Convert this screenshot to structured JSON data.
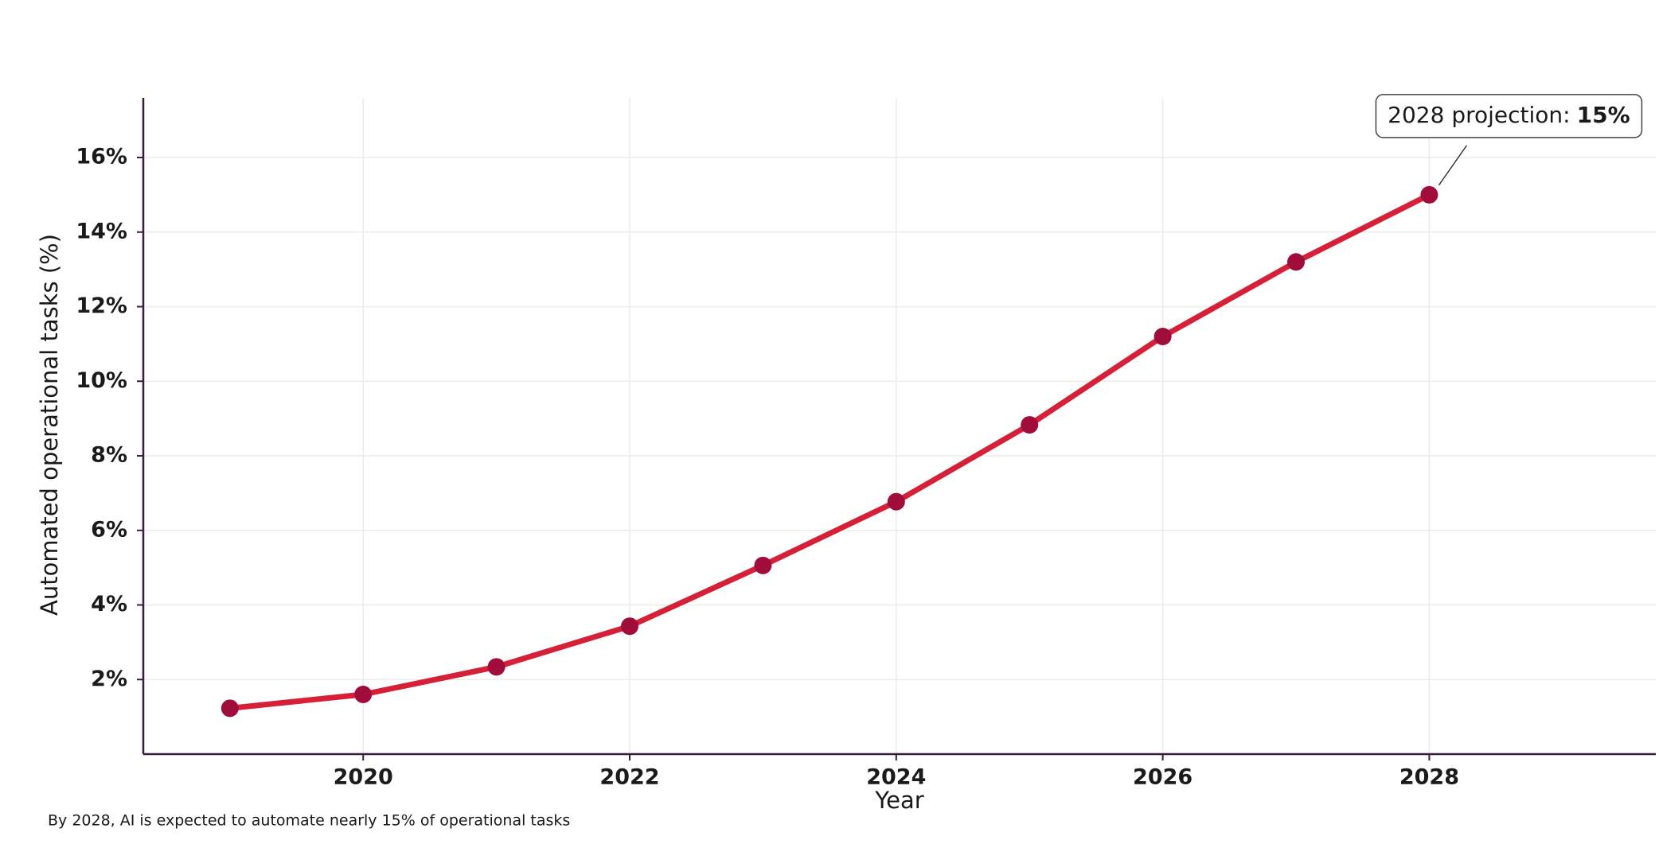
{
  "chart_data": {
    "type": "line",
    "x_label": "Year",
    "y_label": "Automated operational tasks (%)",
    "caption": "By 2028, AI is expected to automate nearly 15% of operational tasks",
    "x": [
      2019,
      2020,
      2021,
      2022,
      2023,
      2024,
      2025,
      2026,
      2027,
      2028
    ],
    "series": [
      {
        "name": "Automated operational tasks",
        "line_color": "#d62038",
        "color": "#a00d3a",
        "values": [
          1.23,
          1.6,
          2.34,
          3.43,
          5.06,
          6.77,
          8.83,
          11.2,
          13.2,
          15.0
        ]
      }
    ],
    "xlim": [
      2018.35,
      2029.7
    ],
    "xticks": [
      2020,
      2022,
      2024,
      2026,
      2028
    ],
    "ylim": [
      0,
      17.6
    ],
    "yticks": [
      {
        "value": 2,
        "label": "2%"
      },
      {
        "value": 4,
        "label": "4%"
      },
      {
        "value": 6,
        "label": "6%"
      },
      {
        "value": 8,
        "label": "8%"
      },
      {
        "value": 10,
        "label": "10%"
      },
      {
        "value": 12,
        "label": "12%"
      },
      {
        "value": 14,
        "label": "14%"
      },
      {
        "value": 16,
        "label": "16%"
      }
    ],
    "grid": true,
    "annotation": {
      "text": "2028 projection:",
      "highlight": "15%",
      "point": 9
    }
  }
}
